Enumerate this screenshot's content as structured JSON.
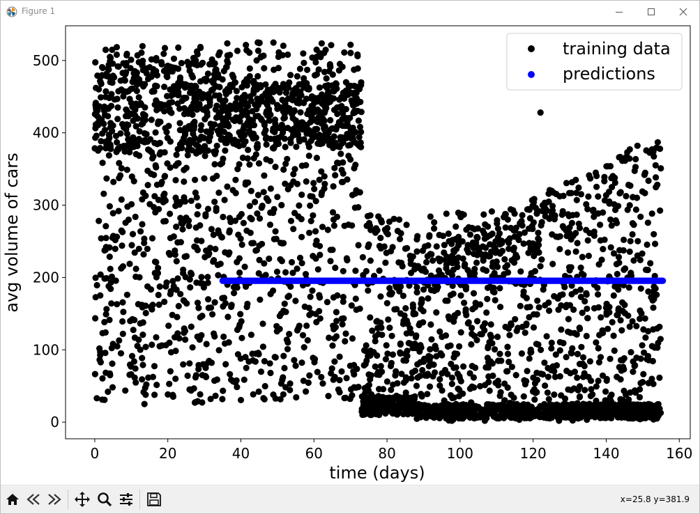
{
  "window": {
    "title": "Figure 1",
    "controls": {
      "minimize": "—",
      "maximize": "☐",
      "close": "✕"
    }
  },
  "toolbar": {
    "buttons": [
      "home-icon",
      "back-icon",
      "forward-icon",
      "pan-icon",
      "zoom-icon",
      "configure-subplots-icon",
      "save-icon"
    ],
    "coords_readout": "x=25.8 y=381.9"
  },
  "chart_data": {
    "type": "scatter",
    "title": "",
    "xlabel": "time (days)",
    "ylabel": "avg volume of cars",
    "xlim": [
      -8,
      163
    ],
    "ylim": [
      -23,
      548
    ],
    "xticks": [
      "0",
      "20",
      "40",
      "60",
      "80",
      "100",
      "120",
      "140",
      "160"
    ],
    "yticks": [
      "0",
      "100",
      "200",
      "300",
      "400",
      "500"
    ],
    "legend_position": "top-right",
    "grid": false,
    "colors": {
      "training": "#000000",
      "predictions": "#0000ff"
    },
    "series": [
      {
        "name": "training data",
        "description": "~3700 daily points, t=0..155",
        "segments": [
          {
            "t": [
              0,
              35
            ],
            "range": [
              25,
              520
            ],
            "dense_band": [
              370,
              500
            ]
          },
          {
            "t": [
              35,
              73
            ],
            "range": [
              30,
              525
            ],
            "dense_band": [
              380,
              470
            ]
          },
          {
            "t": [
              73,
              88
            ],
            "range": [
              10,
              410
            ],
            "dense_band": [
              10,
              35
            ]
          },
          {
            "t": [
              88,
              155
            ],
            "range": [
              2,
              420
            ],
            "dense_band": [
              5,
              25
            ],
            "upper_trend": [
              230,
              400
            ]
          }
        ],
        "outliers": [
          [
            45,
            524
          ],
          [
            6,
            508
          ],
          [
            122,
            428
          ]
        ]
      },
      {
        "name": "predictions",
        "x_start": 35,
        "x_end": 155.5,
        "y": 195.5
      }
    ]
  }
}
